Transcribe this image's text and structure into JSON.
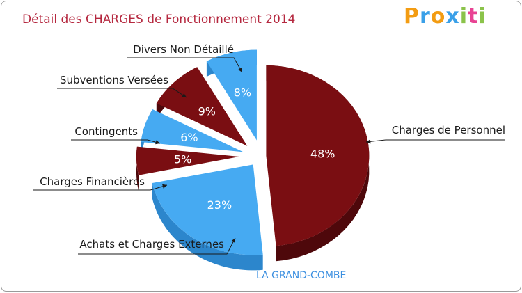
{
  "chart_data": {
    "type": "pie",
    "title": "Détail des CHARGES de Fonctionnement 2014",
    "subtitle": "LA GRAND-COMBE",
    "brand": "Proxiti",
    "slices": [
      {
        "label": "Charges de Personnel",
        "value": 48,
        "pct_text": "48%",
        "color": "#7a0e12",
        "side_color": "#4e080b"
      },
      {
        "label": "Achats et Charges Externes",
        "value": 23,
        "pct_text": "23%",
        "color": "#46aaf2",
        "side_color": "#2c86cc"
      },
      {
        "label": "Charges Financières",
        "value": 5,
        "pct_text": "5%",
        "color": "#7a0e12",
        "side_color": "#4e080b"
      },
      {
        "label": "Contingents",
        "value": 6,
        "pct_text": "6%",
        "color": "#46aaf2",
        "side_color": "#2c86cc"
      },
      {
        "label": "Subventions Versées",
        "value": 9,
        "pct_text": "9%",
        "color": "#7a0e12",
        "side_color": "#4e080b"
      },
      {
        "label": "Divers Non Détaillé",
        "value": 8,
        "pct_text": "8%",
        "color": "#46aaf2",
        "side_color": "#2c86cc"
      }
    ]
  }
}
